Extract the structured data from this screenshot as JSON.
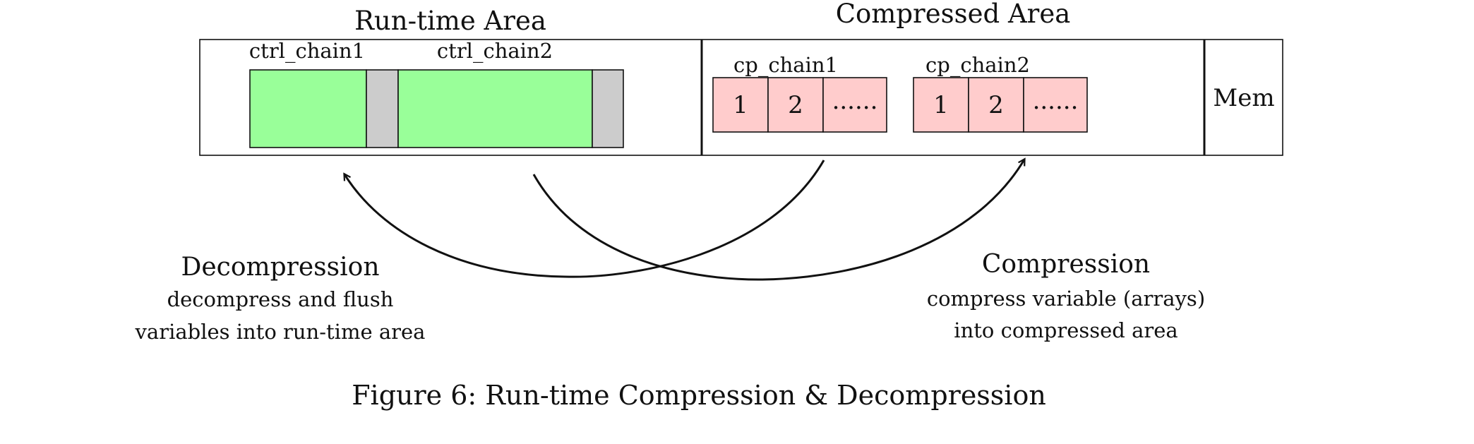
{
  "runtime_area": {
    "title": "Run-time Area",
    "chains": [
      {
        "label": "ctrl_chain1"
      },
      {
        "label": "ctrl_chain2"
      }
    ]
  },
  "compressed_area": {
    "title": "Compressed Area",
    "chains": [
      {
        "label": "cp_chain1",
        "cells": [
          "1",
          "2",
          "......"
        ]
      },
      {
        "label": "cp_chain2",
        "cells": [
          "1",
          "2",
          "......"
        ]
      }
    ]
  },
  "memory": {
    "label": "Mem"
  },
  "decompression": {
    "title": "Decompression",
    "desc_line1": "decompress and flush",
    "desc_line2": "variables into run-time area"
  },
  "compression": {
    "title": "Compression",
    "desc_line1": "compress variable (arrays)",
    "desc_line2": "into compressed area"
  },
  "caption": "Figure 6: Run-time Compression & Decompression",
  "colors": {
    "runtime_block": "#99ff99",
    "runtime_tail": "#cccccc",
    "compressed_cell": "#ffcccc"
  }
}
